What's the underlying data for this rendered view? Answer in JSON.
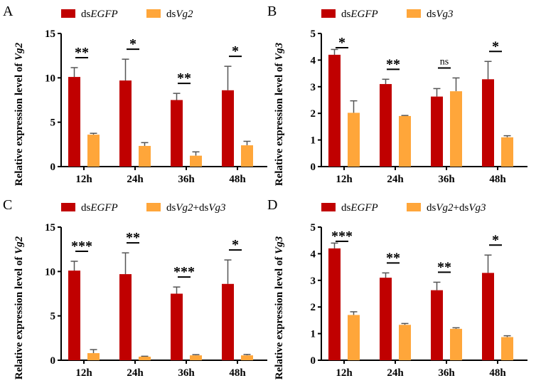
{
  "colors": {
    "egfp": "#C00000",
    "treat": "#FFA63A"
  },
  "chart_data": [
    {
      "type": "bar",
      "panel": "A",
      "ylabel_prefix": "Relative expression  level of ",
      "ylabel_gene": "Vg2",
      "categories": [
        "12h",
        "24h",
        "36h",
        "48h"
      ],
      "ylim": [
        0,
        15
      ],
      "yticks": [
        0,
        5,
        10,
        15
      ],
      "series": [
        {
          "name_prefix": "ds",
          "name_gene": "EGFP",
          "values": [
            10.1,
            9.7,
            7.5,
            8.6
          ],
          "errors": [
            1.05,
            2.4,
            0.75,
            2.7
          ]
        },
        {
          "name_prefix": "ds",
          "name_gene": "Vg2",
          "values": [
            3.6,
            2.33,
            1.23,
            2.4
          ],
          "errors": [
            0.15,
            0.37,
            0.43,
            0.45
          ]
        }
      ],
      "significance": [
        "**",
        "*",
        "**",
        "*"
      ]
    },
    {
      "type": "bar",
      "panel": "B",
      "ylabel_prefix": "Relative expression level of ",
      "ylabel_gene": "Vg3",
      "categories": [
        "12h",
        "24h",
        "36h",
        "48h"
      ],
      "ylim": [
        0,
        5
      ],
      "yticks": [
        0,
        1,
        2,
        3,
        4,
        5
      ],
      "series": [
        {
          "name_prefix": "ds",
          "name_gene": "EGFP",
          "values": [
            4.2,
            3.1,
            2.63,
            3.28
          ],
          "errors": [
            0.2,
            0.18,
            0.3,
            0.67
          ]
        },
        {
          "name_prefix": "ds",
          "name_gene": "Vg3",
          "values": [
            2.02,
            1.9,
            2.83,
            1.1
          ],
          "errors": [
            0.45,
            0.02,
            0.5,
            0.06
          ]
        }
      ],
      "significance": [
        "*",
        "**",
        "ns",
        "*"
      ]
    },
    {
      "type": "bar",
      "panel": "C",
      "ylabel_prefix": "Relative expression  level of ",
      "ylabel_gene": "Vg2",
      "categories": [
        "12h",
        "24h",
        "36h",
        "48h"
      ],
      "ylim": [
        0,
        15
      ],
      "yticks": [
        0,
        5,
        10,
        15
      ],
      "series": [
        {
          "name_prefix": "ds",
          "name_gene": "EGFP",
          "values": [
            10.1,
            9.7,
            7.5,
            8.6
          ],
          "errors": [
            1.05,
            2.4,
            0.75,
            2.7
          ]
        },
        {
          "name_prefix": "ds",
          "name_gene": "Vg2+dsVg3",
          "values": [
            0.8,
            0.4,
            0.55,
            0.55
          ],
          "errors": [
            0.4,
            0.05,
            0.08,
            0.1
          ]
        }
      ],
      "significance": [
        "***",
        "**",
        "***",
        "*"
      ]
    },
    {
      "type": "bar",
      "panel": "D",
      "ylabel_prefix": "Relative expression level of ",
      "ylabel_gene": "Vg3",
      "categories": [
        "12h",
        "24h",
        "36h",
        "48h"
      ],
      "ylim": [
        0,
        5
      ],
      "yticks": [
        0,
        1,
        2,
        3,
        4,
        5
      ],
      "series": [
        {
          "name_prefix": "ds",
          "name_gene": "EGFP",
          "values": [
            4.2,
            3.1,
            2.63,
            3.28
          ],
          "errors": [
            0.2,
            0.18,
            0.3,
            0.67
          ]
        },
        {
          "name_prefix": "ds",
          "name_gene": "Vg2+dsVg3",
          "values": [
            1.7,
            1.33,
            1.18,
            0.87
          ],
          "errors": [
            0.12,
            0.05,
            0.04,
            0.05
          ]
        }
      ],
      "significance": [
        "***",
        "**",
        "**",
        "*"
      ]
    }
  ]
}
